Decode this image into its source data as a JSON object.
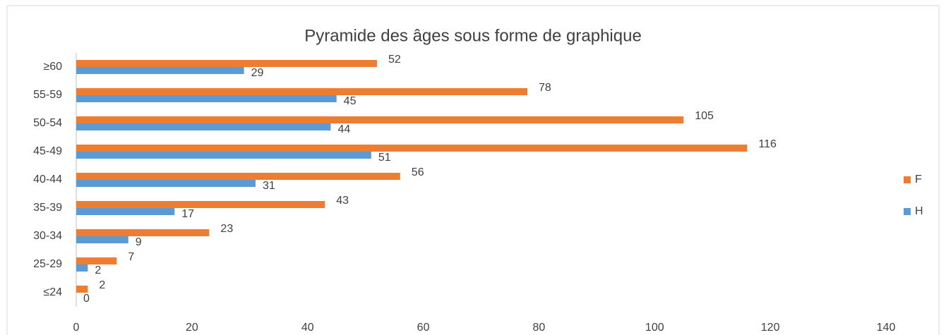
{
  "chart_data": {
    "type": "bar",
    "orientation": "horizontal",
    "title": "Pyramide des âges sous forme de graphique",
    "categories": [
      "≤24",
      "25-29",
      "30-34",
      "35-39",
      "40-44",
      "45-49",
      "50-54",
      "55-59",
      "≥60"
    ],
    "series": [
      {
        "name": "F",
        "color": "#ed7d31",
        "values": [
          2,
          7,
          23,
          43,
          56,
          116,
          105,
          78,
          52
        ]
      },
      {
        "name": "H",
        "color": "#5b9bd5",
        "values": [
          0,
          2,
          9,
          17,
          31,
          51,
          44,
          45,
          29
        ]
      }
    ],
    "xlim": [
      0,
      140
    ],
    "xticks": [
      0,
      20,
      40,
      60,
      80,
      100,
      120,
      140
    ],
    "grid": false,
    "legend": "right"
  }
}
